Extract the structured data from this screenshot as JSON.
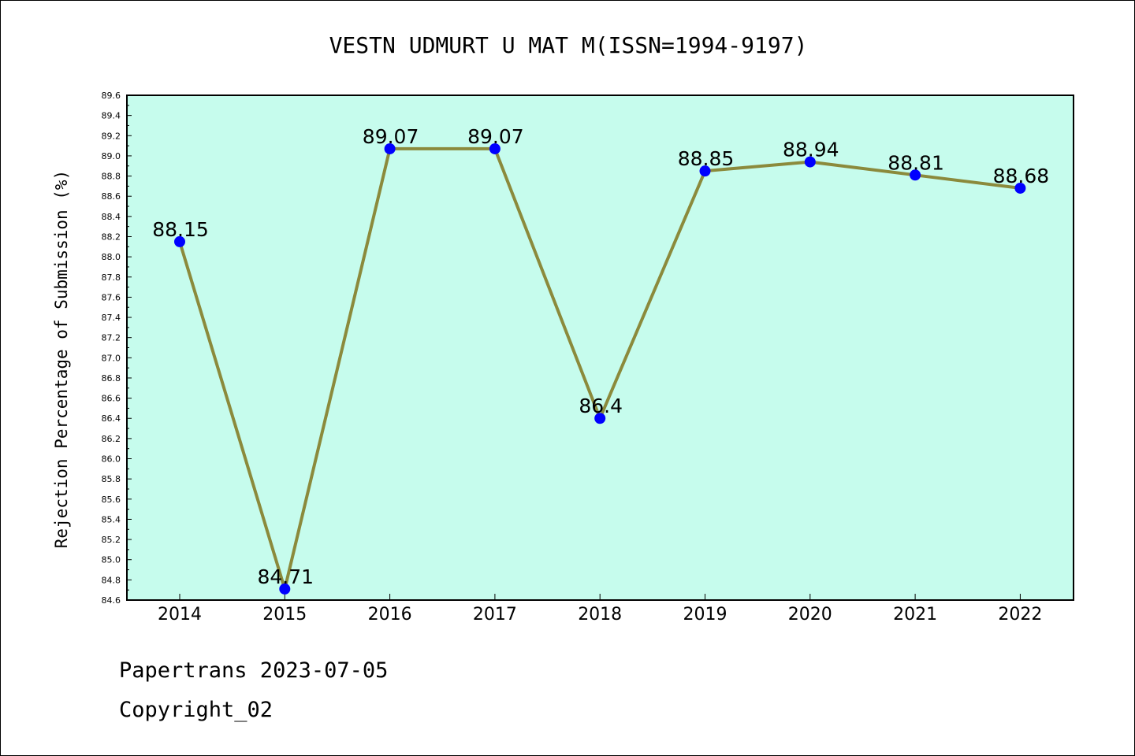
{
  "chart_data": {
    "type": "line",
    "title": "VESTN UDMURT U MAT M(ISSN=1994-9197)",
    "xlabel": "",
    "ylabel": "Rejection Percentage of Submission (%)",
    "ylim": [
      84.6,
      89.6
    ],
    "ytick_step": 0.2,
    "grid": false,
    "categories": [
      "2014",
      "2015",
      "2016",
      "2017",
      "2018",
      "2019",
      "2020",
      "2021",
      "2022"
    ],
    "series": [
      {
        "values": [
          88.15,
          84.71,
          89.07,
          89.07,
          86.4,
          88.85,
          88.94,
          88.81,
          88.68
        ],
        "labels": [
          "88.15",
          "84.71",
          "89.07",
          "89.07",
          "86.4",
          "88.85",
          "88.94",
          "88.81",
          "88.68"
        ]
      }
    ],
    "colors": {
      "background": "#c6fced",
      "line": "#8b8a3c",
      "marker": "#0000ff"
    }
  },
  "footer": {
    "line1": "Papertrans 2023-07-05",
    "line2": "Copyright_02"
  }
}
